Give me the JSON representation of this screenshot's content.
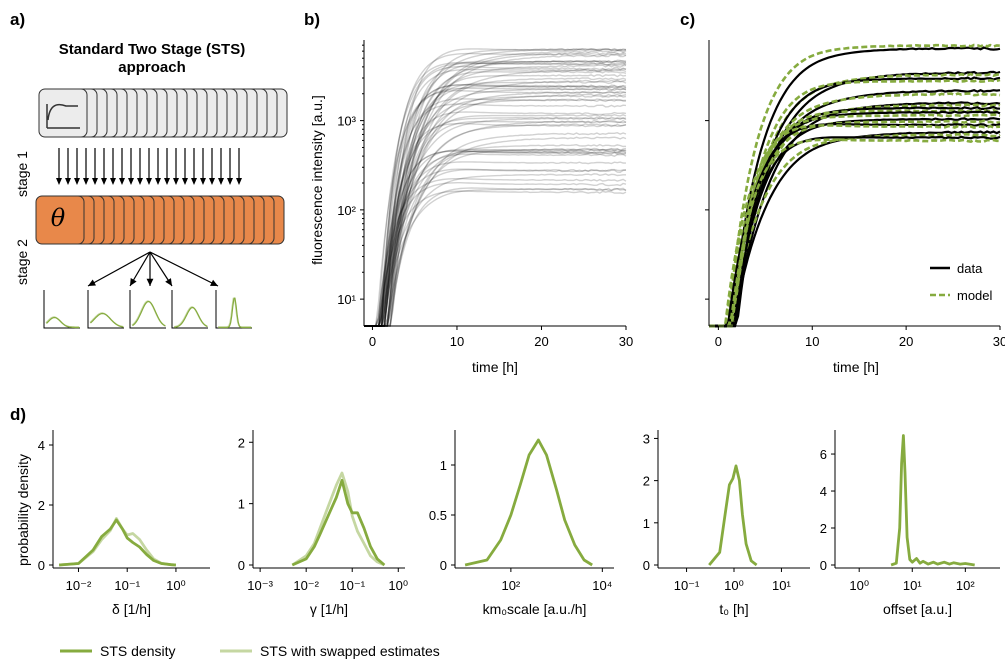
{
  "panel_labels": {
    "a": "a)",
    "b": "b)",
    "c": "c)",
    "d": "d)"
  },
  "panel_a": {
    "title_line1": "Standard Two Stage (STS)",
    "title_line2": "approach",
    "stage1_label": "stage 1",
    "stage2_label": "stage 2",
    "theta_symbol": "θ",
    "box_fill": "#e8884a",
    "card_fill": "#ececec"
  },
  "chart_data": [
    {
      "id": "b",
      "type": "line",
      "xlabel": "time [h]",
      "ylabel": "fluorescence intensity [a.u.]",
      "x_ticks": [
        "0",
        "10",
        "20",
        "30"
      ],
      "y_ticks": [
        "10¹",
        "10²",
        "10³"
      ],
      "xlim": [
        -1,
        30
      ],
      "ylim": [
        5,
        8000
      ],
      "yscale": "log",
      "color": "#000000",
      "n_series": 60,
      "plateau_range": [
        90,
        6500
      ]
    },
    {
      "id": "c",
      "type": "line",
      "xlabel": "time [h]",
      "x_ticks": [
        "0",
        "10",
        "20",
        "30"
      ],
      "xlim": [
        -1,
        30
      ],
      "yscale": "log",
      "series": [
        {
          "name": "data",
          "color": "#000000",
          "style": "solid"
        },
        {
          "name": "model",
          "color": "#86ab3f",
          "style": "dashed"
        }
      ],
      "legend": "bottom-right",
      "plateaus": [
        6500,
        3500,
        3000,
        2200,
        1600,
        1400,
        1250,
        1050,
        900,
        750,
        650
      ],
      "plateaus_model": [
        7000,
        3300,
        2800,
        2000,
        1500,
        1300,
        1150,
        980,
        860,
        700,
        600
      ]
    },
    {
      "id": "d1",
      "type": "line",
      "ylabel": "probability density",
      "xlabel": "δ  [1/h]",
      "xscale": "log",
      "x_ticks": [
        "10⁻²",
        "10⁻¹",
        "10⁰"
      ],
      "y_ticks": [
        "0",
        "2",
        "4"
      ],
      "ylim": [
        0,
        4.5
      ],
      "x": [
        0.004,
        0.01,
        0.02,
        0.03,
        0.045,
        0.06,
        0.08,
        0.1,
        0.13,
        0.18,
        0.25,
        0.35,
        0.5,
        0.8,
        1.0
      ],
      "series": [
        {
          "name": "STS density",
          "values": [
            0,
            0.05,
            0.5,
            0.95,
            1.2,
            1.5,
            1.2,
            0.9,
            0.75,
            0.6,
            0.35,
            0.15,
            0.05,
            0.01,
            0
          ]
        },
        {
          "name": "STS with swapped estimates",
          "values": [
            0,
            0.05,
            0.45,
            0.85,
            1.15,
            1.55,
            1.2,
            1.0,
            1.05,
            0.85,
            0.5,
            0.2,
            0.06,
            0.01,
            0
          ]
        }
      ]
    },
    {
      "id": "d2",
      "type": "line",
      "xlabel": "γ  [1/h]",
      "xscale": "log",
      "x_ticks": [
        "10⁻³",
        "10⁻²",
        "10⁻¹",
        "10⁰"
      ],
      "y_ticks": [
        "0",
        "1",
        "2"
      ],
      "ylim": [
        0,
        2.2
      ],
      "x": [
        0.005,
        0.01,
        0.015,
        0.02,
        0.03,
        0.045,
        0.06,
        0.08,
        0.1,
        0.13,
        0.18,
        0.25,
        0.35,
        0.5
      ],
      "series": [
        {
          "name": "STS density",
          "values": [
            0,
            0.1,
            0.3,
            0.5,
            0.8,
            1.1,
            1.38,
            1.0,
            0.85,
            0.85,
            0.6,
            0.3,
            0.1,
            0
          ]
        },
        {
          "name": "STS with swapped estimates",
          "values": [
            0,
            0.15,
            0.35,
            0.6,
            0.95,
            1.3,
            1.5,
            1.2,
            0.8,
            0.55,
            0.35,
            0.15,
            0.05,
            0
          ]
        }
      ]
    },
    {
      "id": "d3",
      "type": "line",
      "xlabel": "km₀scale [a.u./h]",
      "xscale": "log",
      "x_ticks": [
        "10²",
        "10⁴"
      ],
      "y_ticks": [
        "0",
        "0.5",
        "1"
      ],
      "ylim": [
        0,
        1.35
      ],
      "x": [
        10,
        30,
        60,
        100,
        160,
        250,
        400,
        600,
        1000,
        1500,
        2500,
        4000,
        6000
      ],
      "series": [
        {
          "name": "STS density",
          "values": [
            0,
            0.05,
            0.25,
            0.5,
            0.8,
            1.1,
            1.25,
            1.1,
            0.75,
            0.45,
            0.2,
            0.05,
            0
          ]
        }
      ]
    },
    {
      "id": "d4",
      "type": "line",
      "xlabel": "t₀  [h]",
      "xscale": "log",
      "x_ticks": [
        "10⁻¹",
        "10⁰",
        "10¹"
      ],
      "y_ticks": [
        "0",
        "1",
        "2",
        "3"
      ],
      "ylim": [
        0,
        3.2
      ],
      "x": [
        0.3,
        0.5,
        0.65,
        0.8,
        0.95,
        1.1,
        1.3,
        1.5,
        1.8,
        2.3,
        3
      ],
      "series": [
        {
          "name": "STS density",
          "values": [
            0,
            0.3,
            1.2,
            1.9,
            2.05,
            2.35,
            2.0,
            1.2,
            0.5,
            0.1,
            0
          ]
        }
      ]
    },
    {
      "id": "d5",
      "type": "line",
      "xlabel": "offset  [a.u.]",
      "xscale": "log",
      "x_ticks": [
        "10⁰",
        "10¹",
        "10²"
      ],
      "y_ticks": [
        "0",
        "2",
        "4",
        "6"
      ],
      "ylim": [
        0,
        7.3
      ],
      "x": [
        4,
        5,
        5.8,
        6.3,
        6.8,
        7.3,
        8,
        9,
        10,
        12,
        14,
        16,
        20,
        25,
        30,
        40,
        50,
        60,
        80,
        100,
        150
      ],
      "series": [
        {
          "name": "STS density",
          "values": [
            0,
            0.1,
            2.0,
            5.5,
            7.0,
            5.0,
            1.5,
            0.3,
            0.15,
            0.35,
            0.1,
            0.2,
            0.05,
            0.15,
            0.05,
            0.15,
            0.05,
            0.12,
            0.05,
            0.08,
            0
          ]
        }
      ]
    }
  ],
  "legend_bottom": [
    {
      "label": "STS density",
      "color": "#86ab3f"
    },
    {
      "label": "STS with swapped estimates",
      "color": "#c5d7a2"
    }
  ]
}
